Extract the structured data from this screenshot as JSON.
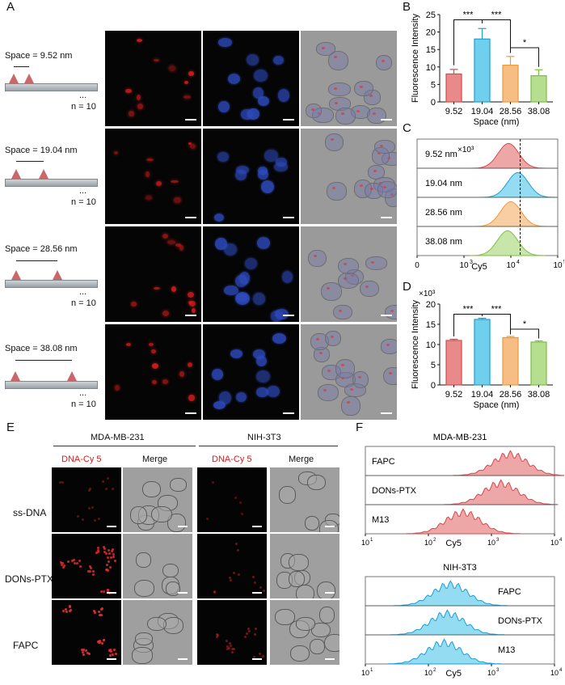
{
  "panels": {
    "A": "A",
    "B": "B",
    "C": "C",
    "D": "D",
    "E": "E",
    "F": "F"
  },
  "panelA": {
    "rows": [
      {
        "space": "Space = 9.52 nm",
        "dots": "...",
        "n": "n = 10"
      },
      {
        "space": "Space = 19.04 nm",
        "dots": "...",
        "n": "n = 10"
      },
      {
        "space": "Space = 28.56 nm",
        "dots": "...",
        "n": "n = 10"
      },
      {
        "space": "Space = 38.08 nm",
        "dots": "...",
        "n": "n = 10"
      }
    ]
  },
  "panelE": {
    "group1": "MDA-MB-231",
    "group2": "NIH-3T3",
    "col_cy5": "DNA-Cy 5",
    "col_merge": "Merge",
    "rows": [
      "ss-DNA",
      "DONs-PTX",
      "FAPC"
    ]
  },
  "panelF": {
    "top_title": "MDA-MB-231",
    "bottom_title": "NIH-3T3",
    "xlabel": "Cy5",
    "ticks": [
      "10",
      "10",
      "10",
      "10"
    ],
    "tick_exp": [
      "1",
      "2",
      "3",
      "4"
    ],
    "top_labels": [
      "FAPC",
      "DONs-PTX",
      "M13"
    ],
    "bottom_labels": [
      "FAPC",
      "DONs-PTX",
      "M13"
    ]
  },
  "colors": {
    "red": "#e8898a",
    "blue": "#6fd0ee",
    "orange": "#f6be84",
    "green": "#b5de8e",
    "cy5_label": "#d42020"
  },
  "chart_data": [
    {
      "id": "B",
      "type": "bar",
      "categories": [
        "9.52",
        "19.04",
        "28.56",
        "38.08"
      ],
      "values": [
        8,
        18,
        10.5,
        7.5
      ],
      "errors": [
        1.3,
        3,
        2.5,
        1.7
      ],
      "xlabel": "Space (nm)",
      "ylabel": "Fluorescence Intensity",
      "ylim": [
        0,
        25
      ],
      "yticks": [
        "0",
        "5",
        "10",
        "15",
        "20",
        "25"
      ],
      "significance": [
        "***",
        "***",
        "*"
      ]
    },
    {
      "id": "C",
      "type": "area",
      "series": [
        {
          "name": "9.52 nm",
          "peak_log": 3.95
        },
        {
          "name": "19.04 nm",
          "peak_log": 4.15
        },
        {
          "name": "28.56 nm",
          "peak_log": 4.0
        },
        {
          "name": "38.08 nm",
          "peak_log": 3.93
        }
      ],
      "multiplier": "×10³",
      "xlabel": "Cy5",
      "xticks": [
        "0",
        "10",
        "10",
        "10"
      ],
      "xtick_exp": [
        "",
        "3",
        "4",
        "5"
      ],
      "reference_line_log": 4.2
    },
    {
      "id": "D",
      "type": "bar",
      "categories": [
        "9.52",
        "19.04",
        "28.56",
        "38.08"
      ],
      "values": [
        11,
        16.2,
        11.7,
        10.6
      ],
      "errors": [
        0.3,
        0.3,
        0.3,
        0.3
      ],
      "multiplier": "×10³",
      "xlabel": "Space (nm)",
      "ylabel": "Fluorescence Intensity",
      "ylim": [
        0,
        20
      ],
      "yticks": [
        "0",
        "5",
        "10",
        "15",
        "20"
      ],
      "significance": [
        "***",
        "***",
        "*"
      ]
    }
  ]
}
